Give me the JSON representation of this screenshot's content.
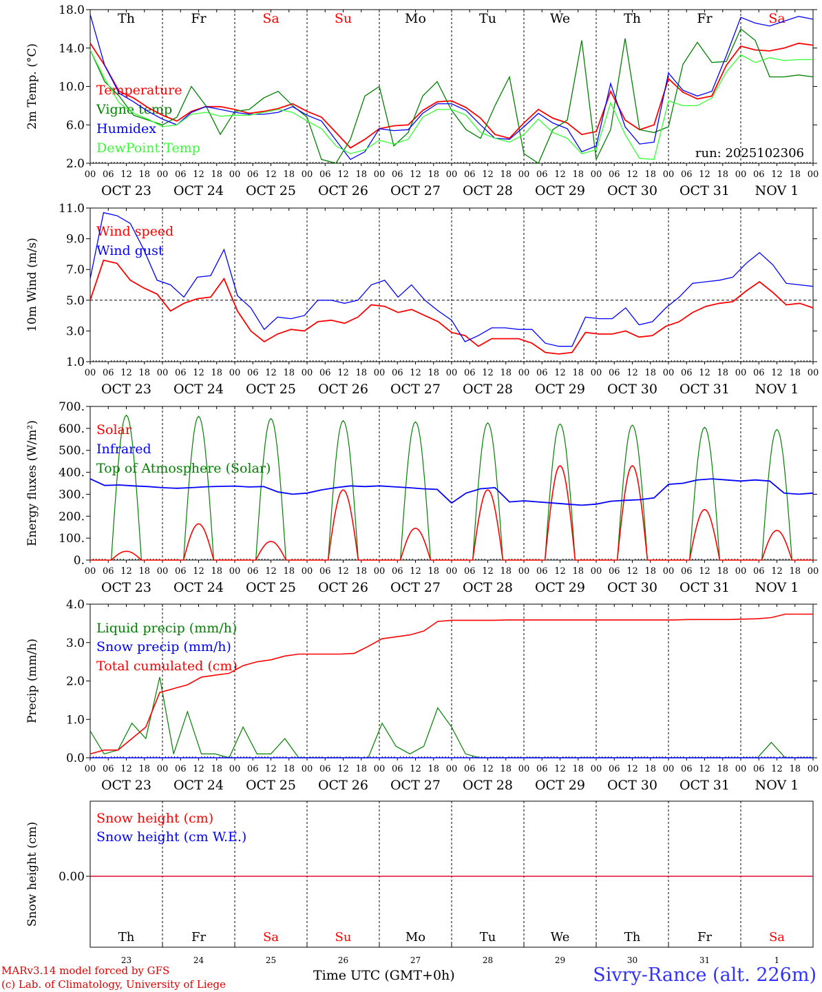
{
  "days": {
    "weekday": [
      "Th",
      "Fr",
      "Sa",
      "Su",
      "Mo",
      "Tu",
      "We",
      "Th",
      "Fr",
      "Sa"
    ],
    "weekday_color": [
      "#000000",
      "#000000",
      "#ff0000",
      "#ff0000",
      "#000000",
      "#000000",
      "#000000",
      "#000000",
      "#000000",
      "#ff0000"
    ],
    "date_labels": [
      "OCT 23",
      "OCT 24",
      "OCT 25",
      "OCT 26",
      "OCT 27",
      "OCT 28",
      "OCT 29",
      "OCT 30",
      "OCT 31",
      "NOV  1"
    ],
    "day_numbers": [
      "23",
      "24",
      "25",
      "26",
      "27",
      "28",
      "29",
      "30",
      "31",
      "1"
    ],
    "hour_ticks": [
      "00",
      "06",
      "12",
      "18"
    ],
    "last_tick": "00"
  },
  "footer": {
    "model_line": "MARv3.14 model forced by GFS",
    "lab_line": "(c) Lab. of Climatology, University of Liege",
    "xlabel": "Time UTC (GMT+0h)",
    "station": "Sivry-Rance (alt. 226m)"
  },
  "colors": {
    "red": "#ff0000",
    "green": "#008000",
    "blue": "#0000ff",
    "lightgreen": "#33ff33"
  },
  "chart_data": [
    {
      "type": "line",
      "ylabel": "2m Temp. (°C)",
      "ylim": [
        2.0,
        18.0
      ],
      "yticks": [
        "2.0",
        "6.0",
        "10.0",
        "14.0",
        "18.0"
      ],
      "annotation": "run: 2025102306",
      "x_hours_start": "OCT 23 00",
      "x_step_hours": 6,
      "series": [
        {
          "name": "Temperature",
          "color": "#ff0000",
          "values": [
            14.5,
            12.2,
            9.5,
            8.8,
            7.8,
            7.0,
            6.4,
            7.4,
            7.9,
            7.9,
            7.6,
            7.2,
            7.4,
            7.7,
            8.2,
            7.4,
            6.8,
            5.2,
            3.6,
            4.5,
            5.6,
            5.9,
            6.0,
            7.5,
            8.4,
            8.5,
            7.8,
            6.7,
            5.0,
            4.6,
            6.2,
            7.6,
            6.7,
            6.2,
            5.0,
            5.3,
            9.5,
            6.5,
            5.5,
            6.0,
            10.8,
            9.4,
            8.7,
            9.0,
            12.2,
            14.2,
            13.8,
            13.7,
            14.0,
            14.5,
            14.3
          ]
        },
        {
          "name": "Vigne temp",
          "color": "#008000",
          "values": [
            13.8,
            10.5,
            9.0,
            7.0,
            6.5,
            6.0,
            6.8,
            10.0,
            8.0,
            5.0,
            7.4,
            7.6,
            8.8,
            9.5,
            8.0,
            6.8,
            2.4,
            2.0,
            4.5,
            9.0,
            10.0,
            3.8,
            5.2,
            9.0,
            10.5,
            7.5,
            5.5,
            4.6,
            8.0,
            11.0,
            3.0,
            2.0,
            5.5,
            6.5,
            14.8,
            2.4,
            5.5,
            15.0,
            5.5,
            5.2,
            5.8,
            12.3,
            14.6,
            12.5,
            12.6,
            16.0,
            14.8,
            11.0,
            11.0,
            11.2,
            11.0
          ]
        },
        {
          "name": "Humidex",
          "color": "#0000ff",
          "values": [
            17.5,
            12.2,
            9.3,
            8.4,
            7.4,
            6.6,
            6.0,
            7.3,
            7.9,
            7.6,
            7.3,
            7.1,
            7.1,
            7.3,
            7.9,
            7.0,
            6.4,
            4.4,
            2.4,
            3.2,
            5.6,
            5.4,
            5.5,
            7.2,
            8.2,
            8.2,
            7.5,
            6.0,
            4.6,
            4.5,
            5.8,
            7.2,
            6.2,
            5.6,
            3.2,
            3.8,
            10.3,
            5.8,
            4.0,
            4.2,
            11.4,
            9.6,
            9.0,
            9.5,
            13.2,
            17.2,
            16.6,
            16.3,
            16.8,
            17.3,
            17.0
          ]
        },
        {
          "name": "DewPoint Temp",
          "color": "#33ff33",
          "values": [
            13.8,
            10.8,
            8.3,
            7.2,
            6.6,
            5.8,
            6.0,
            7.1,
            7.3,
            6.9,
            7.0,
            7.0,
            7.3,
            7.6,
            7.3,
            6.4,
            5.6,
            3.8,
            3.0,
            3.4,
            4.4,
            4.0,
            4.5,
            6.8,
            7.6,
            7.6,
            7.0,
            5.2,
            4.6,
            4.2,
            5.0,
            6.6,
            5.2,
            4.6,
            3.0,
            3.4,
            8.3,
            5.0,
            2.5,
            2.4,
            8.5,
            8.0,
            8.0,
            8.8,
            11.5,
            13.3,
            12.5,
            13.0,
            12.7,
            12.8,
            12.8
          ]
        }
      ]
    },
    {
      "type": "line",
      "ylabel": "10m Wind (m/s)",
      "ylim": [
        1.0,
        11.0
      ],
      "yticks": [
        "1.0",
        "3.0",
        "5.0",
        "7.0",
        "9.0",
        "11.0"
      ],
      "reference_line": 5.0,
      "series": [
        {
          "name": "Wind speed",
          "color": "#ff0000",
          "values": [
            5.0,
            7.6,
            7.4,
            6.3,
            5.8,
            5.4,
            4.3,
            4.8,
            5.1,
            5.2,
            6.4,
            4.3,
            3.0,
            2.3,
            2.8,
            3.1,
            3.0,
            3.6,
            3.7,
            3.5,
            3.9,
            4.7,
            4.6,
            4.2,
            4.4,
            4.0,
            3.6,
            2.9,
            2.7,
            2.0,
            2.5,
            2.5,
            2.5,
            2.2,
            1.6,
            1.5,
            1.6,
            2.9,
            2.8,
            2.8,
            3.0,
            2.6,
            2.7,
            3.3,
            3.6,
            4.2,
            4.6,
            4.8,
            4.9,
            5.6,
            6.2,
            5.5,
            4.7,
            4.8,
            4.5
          ]
        },
        {
          "name": "Wind gust",
          "color": "#0000ff",
          "values": [
            6.4,
            10.7,
            10.5,
            10.0,
            8.3,
            6.3,
            6.0,
            5.2,
            6.5,
            6.6,
            8.3,
            5.3,
            4.5,
            3.1,
            3.9,
            3.8,
            4.0,
            5.0,
            5.0,
            4.8,
            5.0,
            6.0,
            6.3,
            5.2,
            6.0,
            5.0,
            4.3,
            3.7,
            2.3,
            2.7,
            3.2,
            3.2,
            3.1,
            3.1,
            2.2,
            2.0,
            2.0,
            3.9,
            3.8,
            3.8,
            4.5,
            3.4,
            3.6,
            4.5,
            5.2,
            6.1,
            6.2,
            6.3,
            6.5,
            7.4,
            8.1,
            7.3,
            6.1,
            6.0,
            5.9
          ]
        }
      ]
    },
    {
      "type": "line",
      "ylabel": "Energy fluxes (W/m²)",
      "ylim": [
        0,
        700
      ],
      "yticks": [
        "0.",
        "100.",
        "200.",
        "300.",
        "400.",
        "500.",
        "600.",
        "700."
      ],
      "series": [
        {
          "name": "Solar",
          "color": "#ff0000",
          "peaks": [
            40,
            165,
            85,
            320,
            145,
            320,
            430,
            430,
            230,
            135
          ]
        },
        {
          "name": "Infrared",
          "color": "#0000ff",
          "values": [
            370,
            340,
            342,
            338,
            335,
            330,
            327,
            330,
            334,
            336,
            337,
            333,
            335,
            310,
            300,
            305,
            320,
            330,
            338,
            335,
            338,
            334,
            330,
            325,
            322,
            260,
            305,
            325,
            330,
            265,
            270,
            265,
            260,
            255,
            250,
            255,
            268,
            272,
            275,
            283,
            345,
            350,
            365,
            370,
            365,
            360,
            365,
            360,
            305,
            300,
            305
          ]
        },
        {
          "name": "Top of Atmosphere (Solar)",
          "color": "#008000",
          "peaks": [
            660,
            655,
            645,
            635,
            630,
            625,
            620,
            615,
            605,
            595
          ]
        }
      ]
    },
    {
      "type": "line",
      "ylabel": "Precip (mm/h)",
      "ylim": [
        0.0,
        4.0
      ],
      "yticks": [
        "0.0",
        "1.0",
        "2.0",
        "3.0",
        "4.0"
      ],
      "series": [
        {
          "name": "Liquid precip (mm/h)",
          "color": "#008000",
          "values": [
            0.7,
            0.1,
            0.2,
            0.9,
            0.5,
            2.1,
            0.1,
            1.2,
            0.1,
            0.1,
            0.0,
            0.8,
            0.1,
            0.1,
            0.5,
            0.0,
            0.0,
            0.0,
            0.0,
            0.0,
            0.0,
            0.9,
            0.3,
            0.1,
            0.3,
            1.3,
            0.8,
            0.1,
            0.0,
            0.0,
            0.0,
            0.0,
            0.0,
            0.0,
            0.0,
            0.0,
            0.0,
            0.0,
            0.0,
            0.0,
            0.0,
            0.0,
            0.0,
            0.0,
            0.0,
            0.0,
            0.0,
            0.0,
            0.0,
            0.4,
            0.0,
            0.0,
            0.0
          ]
        },
        {
          "name": "Snow precip (mm/h)",
          "color": "#0000ff",
          "values": [
            0.0,
            0.0,
            0.0,
            0.0,
            0.0,
            0.0,
            0.0,
            0.0,
            0.0,
            0.0,
            0.0,
            0.0,
            0.0,
            0.0,
            0.0,
            0.0,
            0.0,
            0.0,
            0.0,
            0.0,
            0.0,
            0.0,
            0.0,
            0.0,
            0.0,
            0.0,
            0.0,
            0.0,
            0.0,
            0.0,
            0.0,
            0.0,
            0.0,
            0.0,
            0.0,
            0.0,
            0.0,
            0.0,
            0.0,
            0.0,
            0.0,
            0.0,
            0.0,
            0.0,
            0.0,
            0.0,
            0.0,
            0.0,
            0.0,
            0.0,
            0.0,
            0.0,
            0.0
          ]
        },
        {
          "name": "Total cumulated (cm)",
          "color": "#ff0000",
          "values": [
            0.1,
            0.2,
            0.2,
            0.5,
            0.8,
            1.7,
            1.8,
            1.9,
            2.1,
            2.15,
            2.2,
            2.4,
            2.5,
            2.55,
            2.65,
            2.7,
            2.7,
            2.7,
            2.7,
            2.72,
            2.9,
            3.1,
            3.15,
            3.2,
            3.3,
            3.55,
            3.58,
            3.58,
            3.58,
            3.58,
            3.59,
            3.59,
            3.59,
            3.59,
            3.59,
            3.59,
            3.59,
            3.59,
            3.59,
            3.59,
            3.59,
            3.59,
            3.59,
            3.6,
            3.6,
            3.6,
            3.6,
            3.61,
            3.62,
            3.65,
            3.74,
            3.74,
            3.74
          ]
        }
      ]
    },
    {
      "type": "line",
      "ylabel": "Snow height (cm)",
      "yticks": [
        "0.00"
      ],
      "series": [
        {
          "name": "Snow height (cm)",
          "color": "#ff0000",
          "values": [
            0.0,
            0.0
          ]
        },
        {
          "name": "Snow height (cm W.E.)",
          "color": "#0000ff",
          "values": [
            0.0,
            0.0
          ]
        }
      ]
    }
  ]
}
